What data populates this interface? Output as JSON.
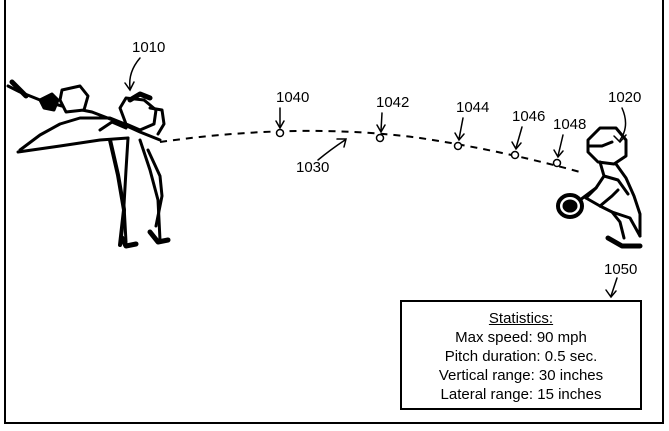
{
  "labels": {
    "pitcher": "1010",
    "catcher": "1020",
    "trajectory": "1030",
    "point_1": "1040",
    "point_2": "1042",
    "point_3": "1044",
    "point_4": "1046",
    "point_5": "1048",
    "statistics": "1050"
  },
  "statistics": {
    "title": "Statistics:",
    "max_speed": "Max speed: 90 mph",
    "pitch_duration": "Pitch duration: 0.5 sec.",
    "vertical_range": "Vertical range: 30 inches",
    "lateral_range": "Lateral range: 15 inches"
  }
}
